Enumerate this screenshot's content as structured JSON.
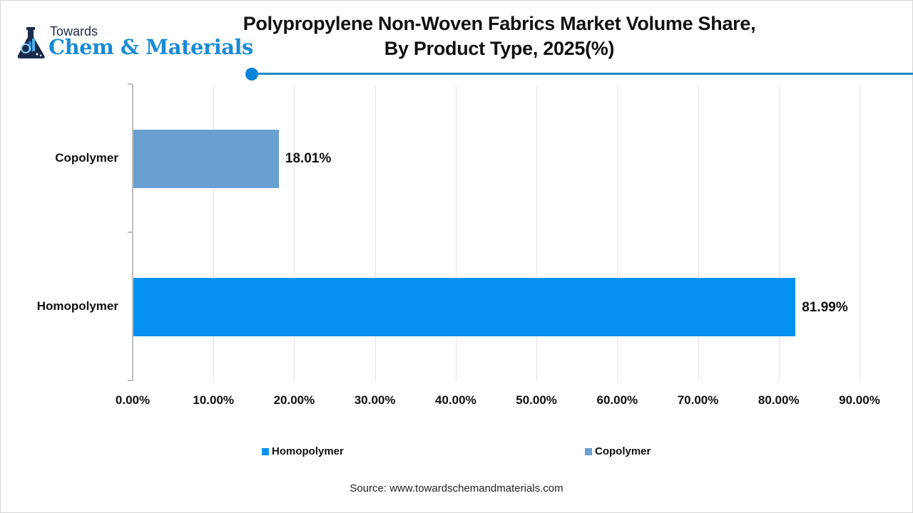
{
  "header": {
    "logo_top": "Towards",
    "logo_main": "Chem & Materials",
    "title_line1": "Polypropylene Non-Woven Fabrics Market Volume Share,",
    "title_line2": "By Product Type, 2025(%)"
  },
  "colors": {
    "homopolymer": "#0591f0",
    "copolymer": "#6a9fd2",
    "accent_line": "#1a8bc8"
  },
  "chart_data": {
    "type": "bar",
    "orientation": "horizontal",
    "title": "Polypropylene Non-Woven Fabrics Market Volume Share, By Product Type, 2025(%)",
    "categories": [
      "Copolymer",
      "Homopolymer"
    ],
    "values": [
      18.01,
      81.99
    ],
    "value_labels": [
      "18.01%",
      "81.99%"
    ],
    "xlabel": "",
    "ylabel": "",
    "xlim": [
      0,
      90
    ],
    "x_ticks": [
      "0.00%",
      "10.00%",
      "20.00%",
      "30.00%",
      "40.00%",
      "50.00%",
      "60.00%",
      "70.00%",
      "80.00%",
      "90.00%"
    ],
    "grid": "vertical",
    "legend": [
      "Homopolymer",
      "Copolymer"
    ],
    "legend_position": "bottom"
  },
  "source": "Source: www.towardschemandmaterials.com"
}
